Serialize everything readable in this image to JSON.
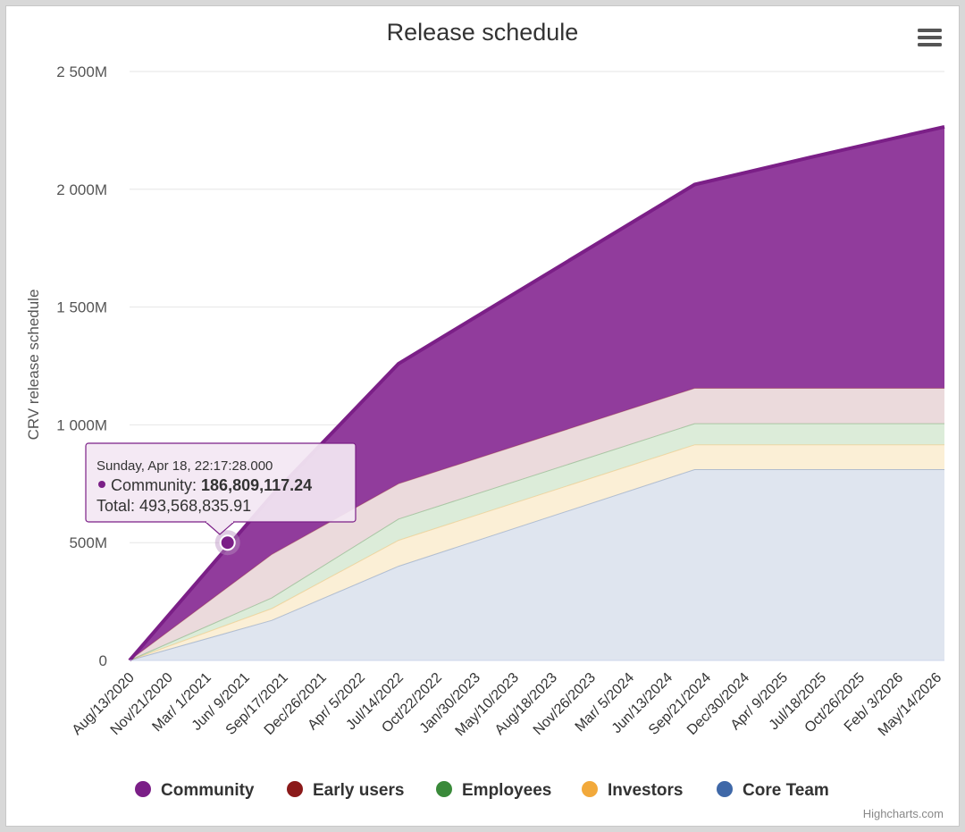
{
  "chart_data": {
    "type": "area",
    "stacking": "normal",
    "title": "Release schedule",
    "ylabel": "CRV release schedule",
    "xlabel": "",
    "ylim": [
      0,
      2500
    ],
    "y_unit": "M",
    "y_ticks": [
      0,
      500,
      1000,
      1500,
      2000,
      2500
    ],
    "y_tick_labels": [
      "0",
      "500M",
      "1 000M",
      "1 500M",
      "2 000M",
      "2 500M"
    ],
    "x_tick_labels": [
      "Aug/13/2020",
      "Nov/21/2020",
      "Mar/ 1/2021",
      "Jun/ 9/2021",
      "Sep/17/2021",
      "Dec/26/2021",
      "Apr/ 5/2022",
      "Jul/14/2022",
      "Oct/22/2022",
      "Jan/30/2023",
      "May/10/2023",
      "Aug/18/2023",
      "Nov/26/2023",
      "Mar/ 5/2024",
      "Jun/13/2024",
      "Sep/21/2024",
      "Dec/30/2024",
      "Apr/ 9/2025",
      "Jul/18/2025",
      "Oct/26/2025",
      "Feb/ 3/2026",
      "May/14/2026"
    ],
    "x_domain": [
      0,
      21.2
    ],
    "series": [
      {
        "name": "Core Team",
        "color": "#3f68a8",
        "fill": "#dfe5ef",
        "points": [
          [
            0,
            0
          ],
          [
            3.7,
            170
          ],
          [
            7,
            400
          ],
          [
            14.7,
            810
          ],
          [
            21.2,
            810
          ]
        ]
      },
      {
        "name": "Investors",
        "color": "#f2a93b",
        "fill": "#fbefd6",
        "points": [
          [
            0,
            0
          ],
          [
            3.7,
            50
          ],
          [
            7,
            110
          ],
          [
            14.7,
            105
          ],
          [
            21.2,
            105
          ]
        ]
      },
      {
        "name": "Employees",
        "color": "#3a8a3a",
        "fill": "#dcecd9",
        "points": [
          [
            0,
            0
          ],
          [
            3.7,
            45
          ],
          [
            7,
            90
          ],
          [
            14.7,
            90
          ],
          [
            21.2,
            90
          ]
        ]
      },
      {
        "name": "Early users",
        "color": "#8b1a1a",
        "fill": "#ebdadc",
        "points": [
          [
            0,
            0
          ],
          [
            3.7,
            185
          ],
          [
            7,
            150
          ],
          [
            14.7,
            150
          ],
          [
            21.2,
            150
          ]
        ]
      },
      {
        "name": "Community",
        "color": "#7b1f87",
        "fill": "#913c9c",
        "points": [
          [
            0,
            0
          ],
          [
            3.7,
            250
          ],
          [
            7,
            510
          ],
          [
            14.7,
            865
          ],
          [
            17.7,
            980
          ],
          [
            21.2,
            1110
          ]
        ]
      }
    ],
    "legend": [
      "Community",
      "Early users",
      "Employees",
      "Investors",
      "Core Team"
    ],
    "legend_colors": [
      "#7b1f87",
      "#8b1a1a",
      "#3a8a3a",
      "#f2a93b",
      "#3f68a8"
    ],
    "hover_point": {
      "x": 2.55,
      "y": 500
    },
    "tooltip": {
      "date": "Sunday, Apr 18, 22:17:28.000",
      "series_label": "Community: ",
      "series_value": "186,809,117.24",
      "total": "Total: 493,568,835.91"
    },
    "credits": "Highcharts.com"
  }
}
